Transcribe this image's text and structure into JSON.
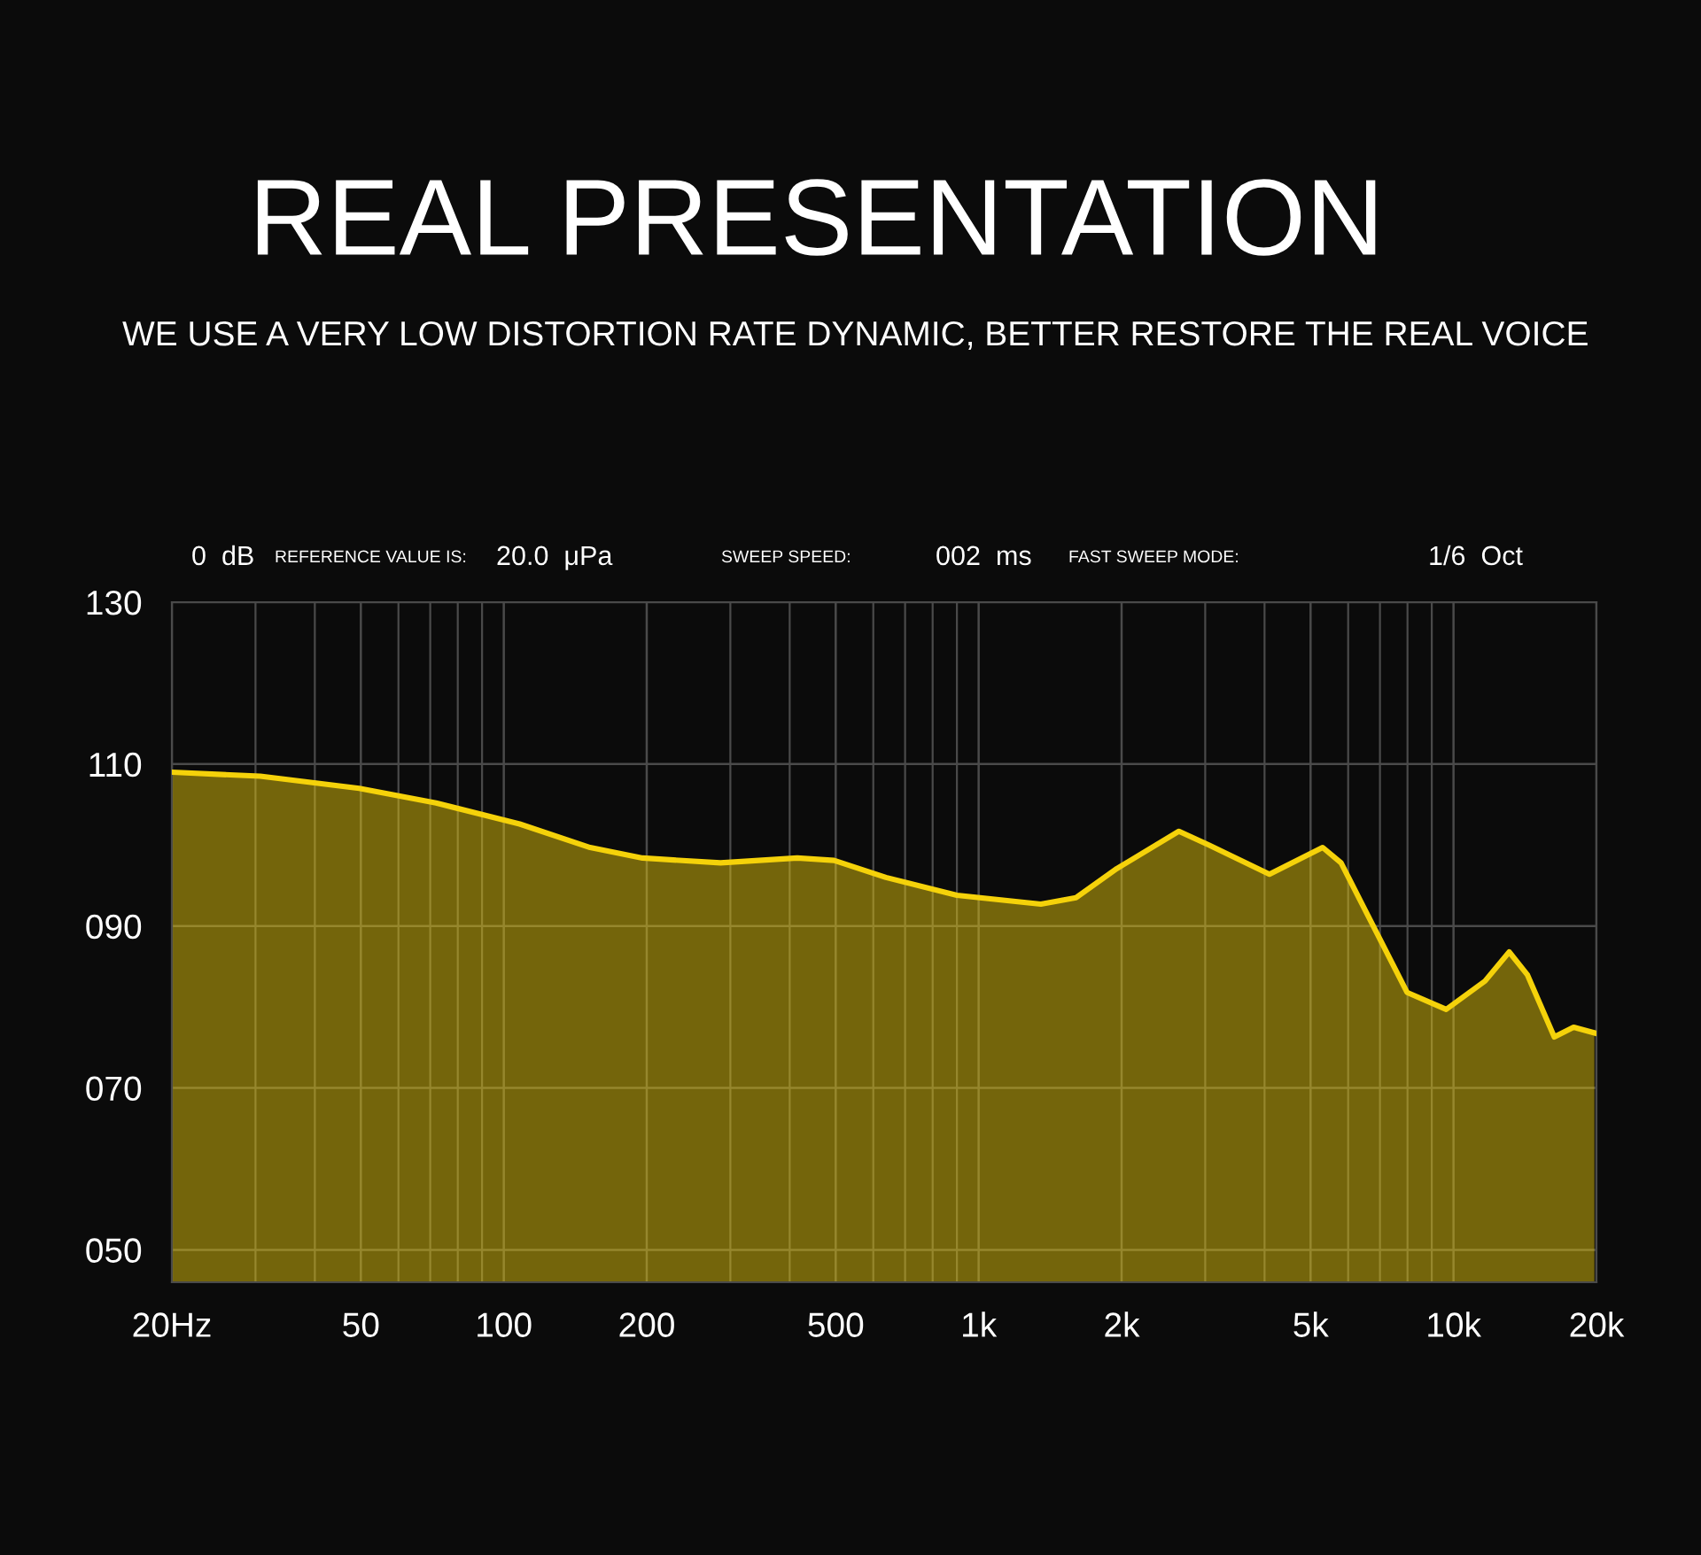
{
  "chart_data": {
    "type": "area",
    "title": "REAL PRESENTATION",
    "subtitle": "WE USE A VERY LOW DISTORTION RATE DYNAMIC, BETTER RESTORE THE REAL VOICE",
    "annotations": [
      "0  dB",
      "REFERENCE VALUE IS:",
      "20.0  μPa",
      "SWEEP SPEED:",
      "002  ms",
      "FAST SWEEP MODE:",
      "1/6  Oct"
    ],
    "x": [
      20,
      30.7,
      49.6,
      72,
      108,
      152,
      196,
      286,
      415,
      496,
      638,
      900,
      1352,
      1603,
      1955,
      2641,
      3054,
      4096,
      5302,
      5797,
      7984,
      9651,
      11650,
      13100,
      14300,
      16300,
      17900,
      19800
    ],
    "series": [
      {
        "color": "#f5d20a",
        "values": [
          109,
          108.5,
          107,
          105.2,
          102.6,
          99.7,
          98.4,
          97.8,
          98.4,
          98.1,
          96,
          93.8,
          92.7,
          93.5,
          97.1,
          101.7,
          100,
          96.4,
          99.7,
          97.8,
          81.8,
          79.7,
          83.2,
          86.8,
          84,
          76.3,
          77.5,
          76.8
        ]
      }
    ],
    "log": "x",
    "xlim": [
      20,
      20000
    ],
    "xticks": [
      {
        "value": 20,
        "label": "20Hz"
      },
      50,
      100,
      200,
      500,
      {
        "value": 1000,
        "label": "1k"
      },
      {
        "value": 2000,
        "label": "2k"
      },
      {
        "value": 5000,
        "label": "5k"
      },
      {
        "value": 10000,
        "label": "10k"
      },
      {
        "value": 20000,
        "label": "20k"
      }
    ],
    "ylim": [
      46,
      130
    ],
    "yticks": [
      {
        "value": 50,
        "label": "050"
      },
      {
        "value": 70,
        "label": "070"
      },
      {
        "value": 90,
        "label": "090"
      },
      110,
      130
    ],
    "grid": true
  }
}
